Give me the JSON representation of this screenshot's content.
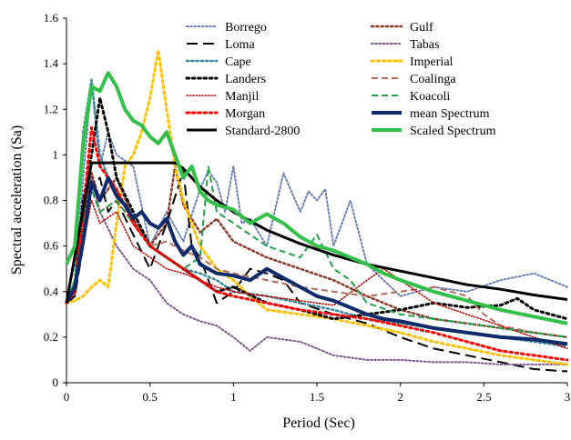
{
  "chart_data": {
    "type": "line",
    "title": "",
    "xlabel": "Period (Sec)",
    "ylabel": "Spectral acceleration (Sa)",
    "xlim": [
      0,
      3
    ],
    "ylim": [
      0,
      1.6
    ],
    "x_ticks": [
      "0",
      "0.5",
      "1",
      "1.5",
      "2",
      "2.5",
      "3"
    ],
    "y_ticks": [
      "0",
      "0.2",
      "0.4",
      "0.6",
      "0.8",
      "1",
      "1.2",
      "1.4",
      "1.6"
    ],
    "grid": false,
    "legend_position": "top",
    "series": [
      {
        "name": "Borrego",
        "color": "#6a7fb5",
        "style": "dotted",
        "width": 2,
        "x": [
          0,
          0.05,
          0.1,
          0.15,
          0.2,
          0.25,
          0.3,
          0.4,
          0.5,
          0.6,
          0.7,
          0.8,
          0.85,
          0.9,
          0.95,
          1.0,
          1.05,
          1.1,
          1.2,
          1.3,
          1.4,
          1.45,
          1.5,
          1.55,
          1.6,
          1.7,
          1.8,
          1.9,
          2.0,
          2.2,
          2.4,
          2.6,
          2.8,
          3.0
        ],
        "y": [
          0.35,
          0.4,
          0.9,
          1.32,
          0.95,
          1.1,
          1.0,
          0.95,
          0.6,
          0.75,
          0.62,
          0.85,
          0.93,
          0.88,
          0.75,
          0.95,
          0.7,
          0.72,
          0.6,
          0.92,
          0.75,
          0.84,
          0.8,
          0.85,
          0.6,
          0.8,
          0.52,
          0.45,
          0.38,
          0.42,
          0.4,
          0.45,
          0.48,
          0.42
        ]
      },
      {
        "name": "Gulf",
        "color": "#8b3a2e",
        "style": "dotted",
        "width": 2.5,
        "x": [
          0,
          0.05,
          0.1,
          0.15,
          0.2,
          0.3,
          0.4,
          0.5,
          0.6,
          0.65,
          0.7,
          0.8,
          0.9,
          1.0,
          1.2,
          1.4,
          1.6,
          1.8,
          2.0,
          2.2,
          2.4,
          2.6,
          2.8,
          3.0
        ],
        "y": [
          0.35,
          0.38,
          0.7,
          0.92,
          0.8,
          0.9,
          0.72,
          0.6,
          0.7,
          0.95,
          0.78,
          0.66,
          0.72,
          0.62,
          0.55,
          0.5,
          0.45,
          0.38,
          0.32,
          0.28,
          0.26,
          0.24,
          0.22,
          0.2
        ]
      },
      {
        "name": "Loma",
        "color": "#000000",
        "style": "longdash",
        "width": 2,
        "x": [
          0,
          0.05,
          0.1,
          0.15,
          0.2,
          0.25,
          0.3,
          0.4,
          0.5,
          0.6,
          0.7,
          0.75,
          0.8,
          0.9,
          1.0,
          1.1,
          1.2,
          1.3,
          1.4,
          1.6,
          1.8,
          2.0,
          2.2,
          2.4,
          2.6,
          2.8,
          3.0
        ],
        "y": [
          0.35,
          0.38,
          0.6,
          0.85,
          0.9,
          0.75,
          0.8,
          0.65,
          0.5,
          0.7,
          0.93,
          0.6,
          0.55,
          0.35,
          0.4,
          0.5,
          0.48,
          0.45,
          0.35,
          0.3,
          0.26,
          0.2,
          0.15,
          0.12,
          0.09,
          0.06,
          0.05
        ]
      },
      {
        "name": "Tabas",
        "color": "#7a5a8a",
        "style": "dotted",
        "width": 2,
        "x": [
          0,
          0.05,
          0.1,
          0.15,
          0.2,
          0.3,
          0.4,
          0.5,
          0.6,
          0.7,
          0.8,
          0.9,
          1.0,
          1.05,
          1.1,
          1.2,
          1.4,
          1.6,
          1.8,
          2.0,
          2.2,
          2.4,
          2.6,
          2.8,
          3.0
        ],
        "y": [
          0.35,
          0.45,
          0.6,
          0.9,
          0.75,
          0.6,
          0.5,
          0.45,
          0.35,
          0.3,
          0.27,
          0.25,
          0.2,
          0.17,
          0.14,
          0.2,
          0.18,
          0.12,
          0.1,
          0.1,
          0.09,
          0.09,
          0.08,
          0.08,
          0.08
        ]
      },
      {
        "name": "Cape",
        "color": "#3a8a9a",
        "style": "dotted",
        "width": 2.5,
        "x": [
          0,
          0.05,
          0.1,
          0.15,
          0.2,
          0.25,
          0.3,
          0.4,
          0.5,
          0.6,
          0.7,
          0.8,
          0.9,
          1.0,
          1.2,
          1.4,
          1.6,
          1.8,
          2.0,
          2.2,
          2.4,
          2.6,
          2.8,
          3.0
        ],
        "y": [
          0.35,
          0.45,
          1.1,
          1.33,
          1.0,
          0.9,
          0.85,
          0.7,
          0.6,
          0.55,
          0.5,
          0.48,
          0.45,
          0.4,
          0.38,
          0.35,
          0.32,
          0.28,
          0.26,
          0.24,
          0.22,
          0.2,
          0.18,
          0.16
        ]
      },
      {
        "name": "Imperial",
        "color": "#ffc000",
        "style": "dotted",
        "width": 3,
        "x": [
          0,
          0.05,
          0.1,
          0.15,
          0.2,
          0.25,
          0.3,
          0.35,
          0.4,
          0.45,
          0.5,
          0.55,
          0.6,
          0.65,
          0.7,
          0.8,
          0.9,
          1.0,
          1.1,
          1.2,
          1.4,
          1.6,
          1.8,
          2.0,
          2.2,
          2.4,
          2.6,
          2.8,
          3.0
        ],
        "y": [
          0.35,
          0.36,
          0.38,
          0.42,
          0.45,
          0.42,
          0.7,
          0.95,
          1.0,
          1.1,
          1.25,
          1.46,
          1.2,
          0.95,
          0.8,
          0.6,
          0.5,
          0.45,
          0.38,
          0.32,
          0.3,
          0.28,
          0.25,
          0.22,
          0.18,
          0.15,
          0.12,
          0.1,
          0.08
        ]
      },
      {
        "name": "Landers",
        "color": "#000000",
        "style": "dotted",
        "width": 3,
        "x": [
          0,
          0.05,
          0.1,
          0.15,
          0.2,
          0.25,
          0.3,
          0.4,
          0.5,
          0.6,
          0.7,
          0.8,
          0.9,
          1.0,
          1.2,
          1.4,
          1.5,
          1.6,
          1.8,
          2.0,
          2.2,
          2.4,
          2.6,
          2.7,
          2.8,
          3.0
        ],
        "y": [
          0.35,
          0.4,
          0.8,
          1.0,
          1.25,
          1.1,
          0.9,
          0.75,
          0.6,
          0.55,
          0.5,
          0.45,
          0.4,
          0.42,
          0.35,
          0.32,
          0.3,
          0.28,
          0.3,
          0.32,
          0.35,
          0.33,
          0.34,
          0.37,
          0.32,
          0.28
        ]
      },
      {
        "name": "Coalinga",
        "color": "#b26a5a",
        "style": "dash",
        "width": 2,
        "x": [
          0,
          0.05,
          0.1,
          0.15,
          0.2,
          0.3,
          0.4,
          0.5,
          0.6,
          0.7,
          0.8,
          0.9,
          1.0,
          1.2,
          1.4,
          1.6,
          1.8,
          2.0,
          2.2,
          2.4,
          2.5,
          2.6,
          2.8,
          3.0
        ],
        "y": [
          0.35,
          0.4,
          0.7,
          0.85,
          0.75,
          0.8,
          0.7,
          0.6,
          0.62,
          0.58,
          0.55,
          0.5,
          0.48,
          0.45,
          0.42,
          0.4,
          0.38,
          0.4,
          0.42,
          0.38,
          0.3,
          0.25,
          0.22,
          0.2
        ]
      },
      {
        "name": "Manjil",
        "color": "#c00000",
        "style": "dotted",
        "width": 1.5,
        "x": [
          0,
          0.05,
          0.1,
          0.15,
          0.2,
          0.3,
          0.4,
          0.5,
          0.6,
          0.7,
          0.8,
          0.9,
          1.0,
          1.2,
          1.4,
          1.6,
          1.8,
          1.9,
          2.0,
          2.2,
          2.4,
          2.6,
          2.8,
          3.0
        ],
        "y": [
          0.35,
          0.4,
          0.6,
          0.8,
          0.7,
          0.75,
          0.6,
          0.55,
          0.5,
          0.48,
          0.45,
          0.42,
          0.4,
          0.38,
          0.36,
          0.34,
          0.45,
          0.5,
          0.45,
          0.35,
          0.3,
          0.25,
          0.2,
          0.15
        ]
      },
      {
        "name": "Koacoli",
        "color": "#22a04a",
        "style": "dash",
        "width": 2,
        "x": [
          0,
          0.05,
          0.1,
          0.15,
          0.2,
          0.3,
          0.4,
          0.5,
          0.6,
          0.7,
          0.8,
          0.85,
          0.9,
          1.0,
          1.2,
          1.4,
          1.5,
          1.6,
          1.7,
          1.8,
          2.0,
          2.2,
          2.4,
          2.6,
          2.8,
          3.0
        ],
        "y": [
          0.35,
          0.45,
          0.7,
          0.85,
          0.75,
          0.8,
          0.7,
          0.6,
          0.55,
          0.5,
          0.55,
          0.95,
          0.75,
          0.7,
          0.6,
          0.55,
          0.65,
          0.5,
          0.45,
          0.35,
          0.3,
          0.28,
          0.26,
          0.24,
          0.22,
          0.2
        ]
      },
      {
        "name": "Morgan",
        "color": "#ff0000",
        "style": "dotted",
        "width": 3,
        "x": [
          0,
          0.05,
          0.1,
          0.15,
          0.2,
          0.3,
          0.4,
          0.5,
          0.6,
          0.7,
          0.8,
          0.9,
          1.0,
          1.2,
          1.4,
          1.6,
          1.8,
          2.0,
          2.2,
          2.4,
          2.6,
          2.8,
          3.0
        ],
        "y": [
          0.35,
          0.4,
          0.75,
          1.12,
          0.95,
          0.85,
          0.7,
          0.6,
          0.55,
          0.5,
          0.45,
          0.4,
          0.38,
          0.35,
          0.32,
          0.3,
          0.28,
          0.25,
          0.22,
          0.18,
          0.14,
          0.12,
          0.1
        ]
      },
      {
        "name": "mean Spectrum",
        "color": "#0f2a6b",
        "style": "solid",
        "width": 4,
        "x": [
          0,
          0.05,
          0.1,
          0.15,
          0.2,
          0.25,
          0.3,
          0.35,
          0.4,
          0.45,
          0.5,
          0.55,
          0.6,
          0.65,
          0.7,
          0.75,
          0.8,
          0.85,
          0.9,
          1.0,
          1.1,
          1.2,
          1.3,
          1.4,
          1.5,
          1.6,
          1.7,
          1.8,
          1.9,
          2.0,
          2.2,
          2.4,
          2.6,
          2.8,
          3.0
        ],
        "y": [
          0.35,
          0.42,
          0.62,
          0.88,
          0.8,
          0.9,
          0.82,
          0.78,
          0.72,
          0.75,
          0.7,
          0.68,
          0.72,
          0.62,
          0.56,
          0.6,
          0.52,
          0.5,
          0.48,
          0.47,
          0.45,
          0.5,
          0.46,
          0.42,
          0.38,
          0.36,
          0.33,
          0.3,
          0.28,
          0.27,
          0.24,
          0.22,
          0.2,
          0.19,
          0.17
        ]
      },
      {
        "name": "Standard-2800",
        "color": "#000000",
        "style": "solid",
        "width": 3,
        "x": [
          0,
          0.15,
          0.2,
          0.3,
          0.4,
          0.5,
          0.6,
          0.65,
          0.7,
          0.8,
          0.9,
          1.0,
          1.2,
          1.4,
          1.6,
          1.8,
          2.0,
          2.2,
          2.4,
          2.6,
          2.8,
          3.0
        ],
        "y": [
          0.35,
          0.965,
          0.965,
          0.965,
          0.965,
          0.965,
          0.965,
          0.965,
          0.94,
          0.86,
          0.8,
          0.75,
          0.67,
          0.61,
          0.56,
          0.52,
          0.49,
          0.46,
          0.43,
          0.41,
          0.385,
          0.365
        ]
      },
      {
        "name": "Scaled Spectrum",
        "color": "#33c04a",
        "style": "solid",
        "width": 4,
        "x": [
          0,
          0.05,
          0.1,
          0.15,
          0.2,
          0.25,
          0.3,
          0.35,
          0.4,
          0.45,
          0.5,
          0.55,
          0.6,
          0.65,
          0.7,
          0.75,
          0.8,
          0.85,
          0.9,
          1.0,
          1.1,
          1.2,
          1.3,
          1.4,
          1.5,
          1.6,
          1.7,
          1.8,
          1.9,
          2.0,
          2.2,
          2.4,
          2.6,
          2.8,
          3.0
        ],
        "y": [
          0.52,
          0.6,
          1.05,
          1.3,
          1.28,
          1.36,
          1.3,
          1.2,
          1.15,
          1.13,
          1.08,
          1.05,
          1.1,
          1.0,
          0.9,
          0.95,
          0.84,
          0.8,
          0.78,
          0.76,
          0.7,
          0.74,
          0.7,
          0.64,
          0.6,
          0.58,
          0.55,
          0.52,
          0.48,
          0.45,
          0.4,
          0.36,
          0.32,
          0.29,
          0.26
        ]
      }
    ]
  }
}
